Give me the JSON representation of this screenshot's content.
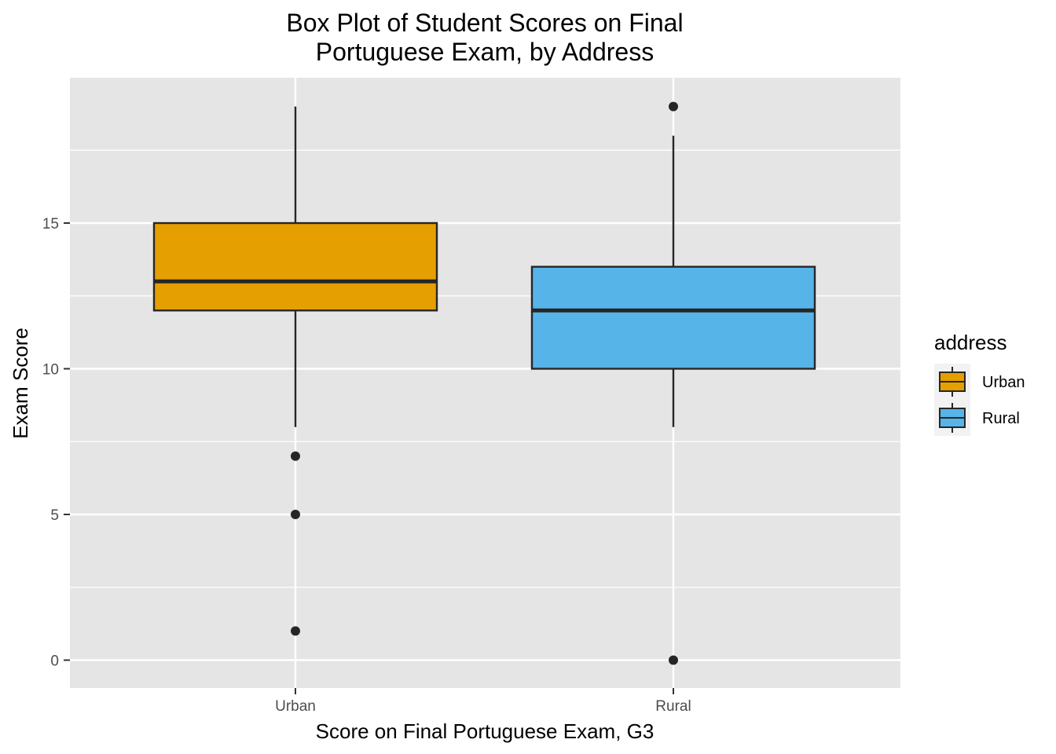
{
  "chart_data": {
    "type": "box",
    "title_lines": [
      "Box Plot of Student Scores on Final",
      "Portuguese Exam, by Address"
    ],
    "xlabel": "Score on Final Portuguese Exam, G3",
    "ylabel": "Exam Score",
    "categories": [
      "Urban",
      "Rural"
    ],
    "ylim": [
      -1,
      20
    ],
    "y_ticks": [
      0,
      5,
      10,
      15
    ],
    "grid": true,
    "legend": {
      "title": "address",
      "position": "right",
      "entries": [
        "Urban",
        "Rural"
      ]
    },
    "series": [
      {
        "name": "Urban",
        "color": "#E69F00",
        "whisker_low": 8,
        "q1": 12,
        "median": 13,
        "q3": 15,
        "whisker_high": 19,
        "outliers": [
          7,
          5,
          1
        ]
      },
      {
        "name": "Rural",
        "color": "#56B4E9",
        "whisker_low": 8,
        "q1": 10,
        "median": 12,
        "q3": 13.5,
        "whisker_high": 18,
        "outliers": [
          19,
          0
        ]
      }
    ]
  }
}
